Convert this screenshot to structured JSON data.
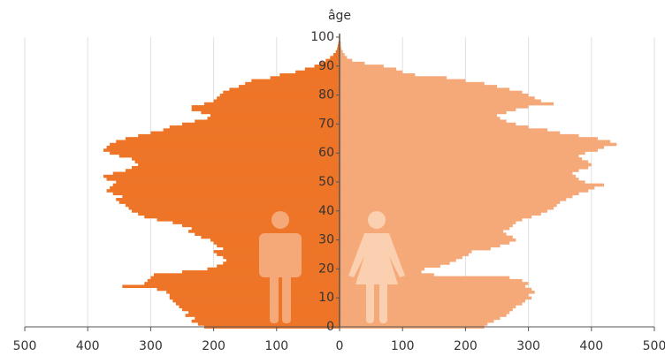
{
  "chart_data": {
    "type": "bar",
    "orientation": "horizontal",
    "y_label": "âge",
    "y": [
      0,
      1,
      2,
      3,
      4,
      5,
      6,
      7,
      8,
      9,
      10,
      11,
      12,
      13,
      14,
      15,
      16,
      17,
      18,
      19,
      20,
      21,
      22,
      23,
      24,
      25,
      26,
      27,
      28,
      29,
      30,
      31,
      32,
      33,
      34,
      35,
      36,
      37,
      38,
      39,
      40,
      41,
      42,
      43,
      44,
      45,
      46,
      47,
      48,
      49,
      50,
      51,
      52,
      53,
      54,
      55,
      56,
      57,
      58,
      59,
      60,
      61,
      62,
      63,
      64,
      65,
      66,
      67,
      68,
      69,
      70,
      71,
      72,
      73,
      74,
      75,
      76,
      77,
      78,
      79,
      80,
      81,
      82,
      83,
      84,
      85,
      86,
      87,
      88,
      89,
      90,
      91,
      92,
      93,
      94,
      95,
      96,
      97,
      98,
      99,
      100
    ],
    "series": [
      {
        "color": "#ee7427",
        "values": [
          -215,
          -225,
          -235,
          -230,
          -245,
          -240,
          -250,
          -255,
          -260,
          -265,
          -270,
          -270,
          -275,
          -290,
          -345,
          -310,
          -305,
          -300,
          -295,
          -250,
          -210,
          -195,
          -185,
          -180,
          -185,
          -195,
          -200,
          -185,
          -195,
          -200,
          -205,
          -220,
          -230,
          -240,
          -235,
          -250,
          -265,
          -290,
          -310,
          -320,
          -330,
          -335,
          -340,
          -350,
          -355,
          -345,
          -360,
          -370,
          -365,
          -360,
          -355,
          -370,
          -375,
          -360,
          -340,
          -330,
          -320,
          -325,
          -330,
          -350,
          -365,
          -375,
          -370,
          -365,
          -355,
          -340,
          -320,
          -300,
          -280,
          -270,
          -250,
          -230,
          -210,
          -205,
          -220,
          -235,
          -235,
          -215,
          -200,
          -195,
          -190,
          -185,
          -175,
          -160,
          -150,
          -140,
          -110,
          -95,
          -70,
          -55,
          -40,
          -30,
          -22,
          -15,
          -10,
          -6,
          -4,
          -3,
          -2,
          -1,
          -1
        ]
      },
      {
        "color": "#f5a878",
        "values": [
          230,
          235,
          245,
          255,
          265,
          270,
          275,
          280,
          290,
          295,
          305,
          300,
          310,
          305,
          295,
          300,
          290,
          270,
          150,
          130,
          135,
          160,
          175,
          185,
          195,
          205,
          210,
          240,
          255,
          270,
          280,
          275,
          265,
          260,
          270,
          275,
          280,
          290,
          305,
          320,
          330,
          340,
          345,
          350,
          360,
          370,
          380,
          395,
          405,
          420,
          390,
          380,
          375,
          370,
          380,
          395,
          400,
          395,
          385,
          380,
          390,
          410,
          420,
          440,
          430,
          410,
          380,
          350,
          330,
          300,
          280,
          265,
          255,
          250,
          265,
          280,
          300,
          340,
          320,
          310,
          300,
          290,
          270,
          250,
          230,
          200,
          170,
          120,
          100,
          90,
          70,
          40,
          20,
          12,
          8,
          5,
          3,
          2,
          2,
          1,
          1
        ]
      }
    ],
    "xlim": [
      -500,
      500
    ],
    "xticks": [
      {
        "value": -500,
        "label": "500"
      },
      {
        "value": -400,
        "label": "400"
      },
      {
        "value": -300,
        "label": "300"
      },
      {
        "value": -200,
        "label": "200"
      },
      {
        "value": -100,
        "label": "100"
      },
      0,
      100,
      200,
      300,
      400,
      500
    ],
    "ylim": [
      0,
      100
    ],
    "yticks": [
      0,
      10,
      20,
      30,
      40,
      50,
      60,
      70,
      80,
      90,
      100
    ],
    "grid": true
  }
}
